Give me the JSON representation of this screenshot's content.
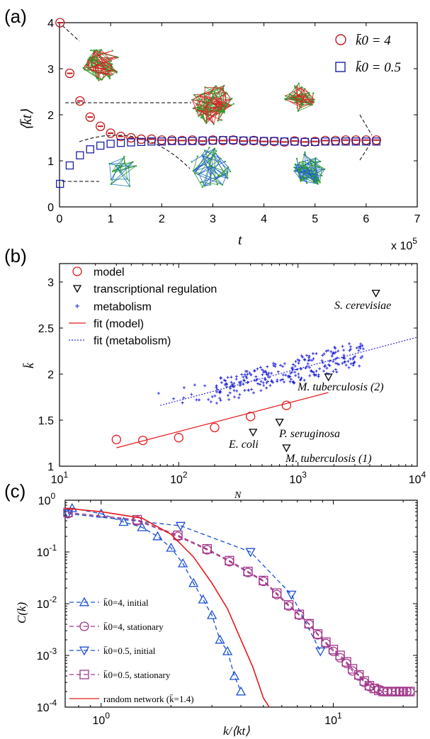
{
  "chart_data": [
    {
      "panel": "(a)",
      "type": "scatter",
      "xlabel": "t",
      "ylabel": "⟨k̄t⟩",
      "x_multiplier": "x 10",
      "x_multiplier_exp": "5",
      "xlim": [
        0,
        7
      ],
      "ylim": [
        0,
        4
      ],
      "xticks": [
        "0",
        "1",
        "2",
        "3",
        "4",
        "5",
        "6",
        "7"
      ],
      "yticks": [
        "0",
        "1",
        "2",
        "3",
        "4"
      ],
      "legend_position": "top-right",
      "series": [
        {
          "name": "k̄0 = 4",
          "marker": "circle",
          "color": "#c0171a",
          "x": [
            0.01,
            0.2,
            0.4,
            0.6,
            0.8,
            1.0,
            1.2,
            1.4,
            1.6,
            1.8,
            2.0,
            2.2,
            2.4,
            2.6,
            2.8,
            3.0,
            3.2,
            3.4,
            3.6,
            3.8,
            4.0,
            4.2,
            4.4,
            4.6,
            4.8,
            5.0,
            5.2,
            5.4,
            5.6,
            5.8,
            6.0,
            6.2
          ],
          "y": [
            4.0,
            2.9,
            2.3,
            1.95,
            1.75,
            1.6,
            1.53,
            1.5,
            1.47,
            1.47,
            1.45,
            1.45,
            1.44,
            1.45,
            1.43,
            1.45,
            1.44,
            1.45,
            1.43,
            1.44,
            1.42,
            1.42,
            1.41,
            1.43,
            1.41,
            1.42,
            1.44,
            1.44,
            1.45,
            1.45,
            1.45,
            1.45
          ]
        },
        {
          "name": "k̄0 = 0.5",
          "marker": "square",
          "color": "#1a1fa8",
          "x": [
            0.01,
            0.2,
            0.4,
            0.6,
            0.8,
            1.0,
            1.2,
            1.4,
            1.6,
            1.8,
            2.0,
            2.2,
            2.4,
            2.6,
            2.8,
            3.0,
            3.2,
            3.4,
            3.6,
            3.8,
            4.0,
            4.2,
            4.4,
            4.6,
            4.8,
            5.0,
            5.2,
            5.4,
            5.6,
            5.8,
            6.0,
            6.2
          ],
          "y": [
            0.5,
            0.9,
            1.12,
            1.25,
            1.33,
            1.37,
            1.39,
            1.4,
            1.41,
            1.42,
            1.42,
            1.43,
            1.43,
            1.43,
            1.44,
            1.44,
            1.45,
            1.45,
            1.44,
            1.44,
            1.43,
            1.43,
            1.42,
            1.42,
            1.41,
            1.41,
            1.42,
            1.42,
            1.42,
            1.42,
            1.42,
            1.42
          ]
        }
      ]
    },
    {
      "panel": "(b)",
      "type": "scatter",
      "xlabel": "N",
      "ylabel": "k̄",
      "xscale": "log",
      "xlim": [
        10,
        10000
      ],
      "ylim": [
        1,
        3.2
      ],
      "xticks": [
        {
          "base": "10",
          "exp": "1"
        },
        {
          "base": "10",
          "exp": "2"
        },
        {
          "base": "10",
          "exp": "3"
        },
        {
          "base": "10",
          "exp": "4"
        }
      ],
      "yticks": [
        "1",
        "1.5",
        "2",
        "2.5",
        "3"
      ],
      "legend_position": "top-left",
      "legend": [
        "model",
        "transcriptional regulation",
        "metabolism",
        "fit (model)",
        "fit (metabolism)"
      ],
      "model": {
        "N": [
          30,
          50,
          100,
          200,
          400,
          800
        ],
        "k": [
          1.29,
          1.28,
          1.31,
          1.42,
          1.54,
          1.66
        ]
      },
      "transcriptional_regulation": [
        {
          "label": "S. cerevisiae",
          "N": 4500,
          "k": 2.88
        },
        {
          "label": "M. tuberculosis (2)",
          "N": 1800,
          "k": 1.97
        },
        {
          "label": "P. seruginosa",
          "N": 700,
          "k": 1.48
        },
        {
          "label": "E. coli",
          "N": 420,
          "k": 1.37
        },
        {
          "label": "M. tuberculosis (1)",
          "N": 800,
          "k": 1.2
        }
      ],
      "fit_model": {
        "N": [
          30,
          1800
        ],
        "k": [
          1.2,
          1.8
        ]
      },
      "fit_metabolism": {
        "N": [
          70,
          10000
        ],
        "k": [
          1.66,
          2.4
        ]
      }
    },
    {
      "panel": "(c)",
      "type": "line",
      "xlabel": "k/⟨kt⟩",
      "ylabel": "C(k)",
      "xscale": "log",
      "yscale": "log",
      "xlim": [
        0.7,
        23
      ],
      "ylim": [
        0.0001,
        1
      ],
      "xticks": [
        {
          "base": "10",
          "exp": "0"
        },
        {
          "base": "10",
          "exp": "1"
        }
      ],
      "yticks": [
        {
          "base": "10",
          "exp": "0"
        },
        {
          "base": "10",
          "exp": "-1"
        },
        {
          "base": "10",
          "exp": "-2"
        },
        {
          "base": "10",
          "exp": "-3"
        },
        {
          "base": "10",
          "exp": "-4"
        }
      ],
      "legend_position": "bottom-left",
      "series": [
        {
          "name": "k̄0=4, initial",
          "marker": "triangle-up",
          "color": "#1a4fd4",
          "dashed": true,
          "x": [
            0.75,
            1.0,
            1.25,
            1.5,
            1.75,
            2.0,
            2.25,
            2.5,
            2.75,
            3.0,
            3.25,
            3.5,
            3.75,
            4.0
          ],
          "y": [
            0.7,
            0.55,
            0.38,
            0.3,
            0.2,
            0.12,
            0.06,
            0.025,
            0.012,
            0.006,
            0.002,
            0.0012,
            0.0004,
            0.0002
          ]
        },
        {
          "name": "k̄0=4, stationary",
          "marker": "circle",
          "color": "#a0378a",
          "dashed": true,
          "x": [
            0.72,
            1.43,
            2.14,
            2.86,
            3.57,
            4.29,
            5.0,
            5.71,
            6.43,
            7.14,
            7.86,
            8.57,
            9.29,
            10.0,
            10.7,
            11.4,
            12.1,
            12.9,
            13.6,
            14.3,
            15.0,
            15.7,
            16.4,
            17.1,
            17.9,
            18.6,
            19.3,
            20.0,
            20.7,
            21.4
          ],
          "y": [
            0.55,
            0.4,
            0.2,
            0.11,
            0.065,
            0.04,
            0.027,
            0.015,
            0.009,
            0.006,
            0.004,
            0.0025,
            0.0017,
            0.0012,
            0.0009,
            0.0007,
            0.0005,
            0.0004,
            0.0003,
            0.00025,
            0.00023,
            0.00022,
            0.0002,
            0.0002,
            0.0002,
            0.0002,
            0.0002,
            0.0002,
            0.0002,
            0.0002
          ]
        },
        {
          "name": "k̄0=0.5, initial",
          "marker": "triangle-down",
          "color": "#1a4fd4",
          "dashed": true,
          "x": [
            0.72,
            2.2,
            4.4,
            6.6,
            8.8
          ],
          "y": [
            0.55,
            0.32,
            0.1,
            0.015,
            0.0012
          ]
        },
        {
          "name": "k̄0=0.5, stationary",
          "marker": "square",
          "color": "#a0378a",
          "dashed": true,
          "x": [
            0.72,
            1.43,
            2.14,
            2.86,
            3.57,
            4.29,
            5.0,
            5.71,
            6.43,
            7.14,
            7.86,
            8.57,
            9.29,
            10.0,
            10.7,
            11.4,
            12.1,
            12.9,
            13.6,
            14.3,
            15.0,
            15.7,
            16.4,
            17.1,
            17.9,
            18.6,
            19.3,
            20.0,
            20.7,
            21.4
          ],
          "y": [
            0.58,
            0.42,
            0.21,
            0.115,
            0.068,
            0.042,
            0.028,
            0.016,
            0.0095,
            0.0062,
            0.0041,
            0.0026,
            0.0018,
            0.0013,
            0.001,
            0.00075,
            0.00055,
            0.00042,
            0.00032,
            0.00026,
            0.00023,
            0.00021,
            0.0002,
            0.0002,
            0.0002,
            0.0002,
            0.0002,
            0.0002,
            0.0002,
            0.0002
          ]
        },
        {
          "name": "random network (k̄=1.4)",
          "marker": "none",
          "color": "#e41a1c",
          "dashed": false,
          "x": [
            0.7,
            1.0,
            1.5,
            2.0,
            2.5,
            3.0,
            3.5,
            4.0,
            4.5,
            5.0,
            5.3
          ],
          "y": [
            0.7,
            0.6,
            0.45,
            0.22,
            0.08,
            0.025,
            0.008,
            0.002,
            0.0006,
            0.00015,
            0.0001
          ]
        }
      ]
    }
  ],
  "labels": {
    "panel_a": "(a)",
    "panel_b": "(b)",
    "panel_c": "(c)",
    "a_leg1": "k̄0 = 4",
    "a_leg2": "k̄0 = 0.5",
    "b_ann_scer": "S. cerevisiae",
    "b_ann_mtb2": "M. tuberculosis (2)",
    "b_ann_pser": "P. seruginosa",
    "b_ann_ecoli": "E. coli",
    "b_ann_mtb1": "M. tuberculosis (1)"
  },
  "colors": {
    "red": "#c0171a",
    "blue": "#1a1fa8",
    "purple": "#a0378a",
    "lightblue": "#1a4fd4",
    "fitred": "#e41a1c",
    "green": "#2ea02e"
  }
}
